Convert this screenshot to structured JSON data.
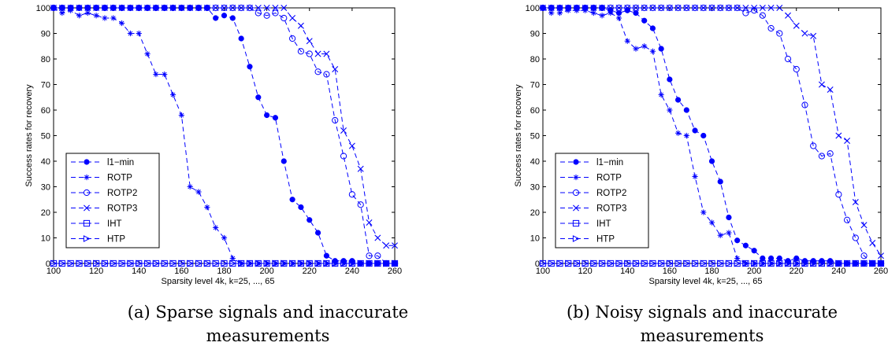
{
  "chart_data": [
    {
      "type": "line",
      "xlabel": "Sparsity level 4k, k=25, ..., 65",
      "ylabel": "Success rates for recovery",
      "xlim": [
        100,
        260
      ],
      "ylim": [
        0,
        100
      ],
      "x_ticks": [
        "100",
        "120",
        "140",
        "160",
        "180",
        "200",
        "220",
        "240",
        "260"
      ],
      "y_ticks": [
        "0",
        "10",
        "20",
        "30",
        "40",
        "50",
        "60",
        "70",
        "80",
        "90",
        "100"
      ],
      "grid": false,
      "legend_position": "lower-left",
      "caption_lines": [
        "(a) Sparse signals and inaccurate",
        "measurements"
      ],
      "series": [
        {
          "name": "l1−min",
          "marker": "dot",
          "color": "#0000ff",
          "x": [
            100,
            104,
            108,
            112,
            116,
            120,
            124,
            128,
            132,
            136,
            140,
            144,
            148,
            152,
            156,
            160,
            164,
            168,
            172,
            176,
            180,
            184,
            188,
            192,
            196,
            200,
            204,
            208,
            212,
            216,
            220,
            224,
            228,
            232,
            236,
            240,
            244,
            248,
            252,
            256,
            260
          ],
          "y": [
            100,
            100,
            100,
            100,
            100,
            100,
            100,
            100,
            100,
            100,
            100,
            100,
            100,
            100,
            100,
            100,
            100,
            100,
            100,
            96,
            97,
            96,
            88,
            77,
            65,
            58,
            57,
            40,
            25,
            22,
            17,
            12,
            3,
            1,
            1,
            1,
            0,
            0,
            0,
            0,
            0
          ]
        },
        {
          "name": "ROTP",
          "marker": "asterisk",
          "color": "#0000ff",
          "x": [
            100,
            104,
            108,
            112,
            116,
            120,
            124,
            128,
            132,
            136,
            140,
            144,
            148,
            152,
            156,
            160,
            164,
            168,
            172,
            176,
            180,
            184,
            188,
            192,
            196,
            200,
            204,
            208,
            212,
            216,
            220,
            224,
            228,
            232,
            236,
            240,
            244,
            248,
            252,
            256,
            260
          ],
          "y": [
            100,
            98,
            99,
            97,
            98,
            97,
            96,
            96,
            94,
            90,
            90,
            82,
            74,
            74,
            66,
            58,
            30,
            28,
            22,
            14,
            10,
            2,
            0,
            0,
            0,
            0,
            0,
            0,
            0,
            0,
            0,
            0,
            0,
            0,
            0,
            0,
            0,
            0,
            0,
            0,
            0
          ]
        },
        {
          "name": "ROTP2",
          "marker": "circle",
          "color": "#0000ff",
          "x": [
            100,
            104,
            108,
            112,
            116,
            120,
            124,
            128,
            132,
            136,
            140,
            144,
            148,
            152,
            156,
            160,
            164,
            168,
            172,
            176,
            180,
            184,
            188,
            192,
            196,
            200,
            204,
            208,
            212,
            216,
            220,
            224,
            228,
            232,
            236,
            240,
            244,
            248,
            252,
            256,
            260
          ],
          "y": [
            100,
            100,
            100,
            100,
            100,
            100,
            100,
            100,
            100,
            100,
            100,
            100,
            100,
            100,
            100,
            100,
            100,
            100,
            100,
            100,
            100,
            100,
            100,
            100,
            98,
            97,
            98,
            96,
            88,
            83,
            82,
            75,
            74,
            56,
            42,
            27,
            23,
            3,
            3,
            0,
            0
          ]
        },
        {
          "name": "ROTP3",
          "marker": "cross",
          "color": "#0000ff",
          "x": [
            100,
            104,
            108,
            112,
            116,
            120,
            124,
            128,
            132,
            136,
            140,
            144,
            148,
            152,
            156,
            160,
            164,
            168,
            172,
            176,
            180,
            184,
            188,
            192,
            196,
            200,
            204,
            208,
            212,
            216,
            220,
            224,
            228,
            232,
            236,
            240,
            244,
            248,
            252,
            256,
            260
          ],
          "y": [
            100,
            100,
            100,
            100,
            100,
            100,
            100,
            100,
            100,
            100,
            100,
            100,
            100,
            100,
            100,
            100,
            100,
            100,
            100,
            100,
            100,
            100,
            100,
            100,
            100,
            100,
            100,
            100,
            96,
            93,
            87,
            82,
            82,
            76,
            52,
            46,
            37,
            16,
            10,
            7,
            7
          ]
        },
        {
          "name": "IHT",
          "marker": "square",
          "color": "#0000ff",
          "x": [
            100,
            104,
            108,
            112,
            116,
            120,
            124,
            128,
            132,
            136,
            140,
            144,
            148,
            152,
            156,
            160,
            164,
            168,
            172,
            176,
            180,
            184,
            188,
            192,
            196,
            200,
            204,
            208,
            212,
            216,
            220,
            224,
            228,
            232,
            236,
            240,
            244,
            248,
            252,
            256,
            260
          ],
          "y": [
            0,
            0,
            0,
            0,
            0,
            0,
            0,
            0,
            0,
            0,
            0,
            0,
            0,
            0,
            0,
            0,
            0,
            0,
            0,
            0,
            0,
            0,
            0,
            0,
            0,
            0,
            0,
            0,
            0,
            0,
            0,
            0,
            0,
            0,
            0,
            0,
            0,
            0,
            0,
            0,
            0
          ]
        },
        {
          "name": "HTP",
          "marker": "triangle-right",
          "color": "#0000ff",
          "x": [
            100,
            104,
            108,
            112,
            116,
            120,
            124,
            128,
            132,
            136,
            140,
            144,
            148,
            152,
            156,
            160,
            164,
            168,
            172,
            176,
            180,
            184,
            188,
            192,
            196,
            200,
            204,
            208,
            212,
            216,
            220,
            224,
            228,
            232,
            236,
            240,
            244,
            248,
            252,
            256,
            260
          ],
          "y": [
            0,
            0,
            0,
            0,
            0,
            0,
            0,
            0,
            0,
            0,
            0,
            0,
            0,
            0,
            0,
            0,
            0,
            0,
            0,
            0,
            0,
            0,
            0,
            0,
            0,
            0,
            0,
            0,
            0,
            0,
            0,
            0,
            0,
            0,
            0,
            0,
            0,
            0,
            0,
            0,
            0
          ]
        }
      ]
    },
    {
      "type": "line",
      "xlabel": "Sparsity level 4k, k=25, ..., 65",
      "ylabel": "Success rates for recovery",
      "xlim": [
        100,
        260
      ],
      "ylim": [
        0,
        100
      ],
      "x_ticks": [
        "100",
        "120",
        "140",
        "160",
        "180",
        "200",
        "220",
        "240",
        "260"
      ],
      "y_ticks": [
        "0",
        "10",
        "20",
        "30",
        "40",
        "50",
        "60",
        "70",
        "80",
        "90",
        "100"
      ],
      "grid": false,
      "legend_position": "lower-left",
      "caption_lines": [
        "(b) Noisy signals and inaccurate",
        "measurements"
      ],
      "series": [
        {
          "name": "l1−min",
          "marker": "dot",
          "color": "#0000ff",
          "x": [
            100,
            104,
            108,
            112,
            116,
            120,
            124,
            128,
            132,
            136,
            140,
            144,
            148,
            152,
            156,
            160,
            164,
            168,
            172,
            176,
            180,
            184,
            188,
            192,
            196,
            200,
            204,
            208,
            212,
            216,
            220,
            224,
            228,
            232,
            236,
            240,
            244,
            248,
            252,
            256,
            260
          ],
          "y": [
            100,
            100,
            100,
            100,
            100,
            100,
            100,
            100,
            99,
            98,
            99,
            98,
            95,
            92,
            84,
            72,
            64,
            60,
            52,
            50,
            40,
            32,
            18,
            9,
            7,
            5,
            2,
            2,
            2,
            1,
            2,
            1,
            1,
            1,
            1,
            0,
            0,
            0,
            0,
            0,
            0
          ]
        },
        {
          "name": "ROTP",
          "marker": "asterisk",
          "color": "#0000ff",
          "x": [
            100,
            104,
            108,
            112,
            116,
            120,
            124,
            128,
            132,
            136,
            140,
            144,
            148,
            152,
            156,
            160,
            164,
            168,
            172,
            176,
            180,
            184,
            188,
            192,
            196,
            200,
            204,
            208,
            212,
            216,
            220,
            224,
            228,
            232,
            236,
            240,
            244,
            248,
            252,
            256,
            260
          ],
          "y": [
            100,
            98,
            98,
            99,
            99,
            99,
            98,
            97,
            98,
            96,
            87,
            84,
            85,
            83,
            66,
            60,
            51,
            50,
            34,
            20,
            16,
            11,
            12,
            2,
            0,
            0,
            0,
            0,
            0,
            0,
            0,
            0,
            0,
            0,
            0,
            0,
            0,
            0,
            0,
            0,
            0
          ]
        },
        {
          "name": "ROTP2",
          "marker": "circle",
          "color": "#0000ff",
          "x": [
            100,
            104,
            108,
            112,
            116,
            120,
            124,
            128,
            132,
            136,
            140,
            144,
            148,
            152,
            156,
            160,
            164,
            168,
            172,
            176,
            180,
            184,
            188,
            192,
            196,
            200,
            204,
            208,
            212,
            216,
            220,
            224,
            228,
            232,
            236,
            240,
            244,
            248,
            252,
            256,
            260
          ],
          "y": [
            100,
            100,
            100,
            100,
            100,
            100,
            100,
            100,
            100,
            100,
            100,
            100,
            100,
            100,
            100,
            100,
            100,
            100,
            100,
            100,
            100,
            100,
            100,
            100,
            98,
            99,
            97,
            92,
            90,
            80,
            76,
            62,
            46,
            42,
            43,
            27,
            17,
            10,
            3,
            0,
            0
          ]
        },
        {
          "name": "ROTP3",
          "marker": "cross",
          "color": "#0000ff",
          "x": [
            100,
            104,
            108,
            112,
            116,
            120,
            124,
            128,
            132,
            136,
            140,
            144,
            148,
            152,
            156,
            160,
            164,
            168,
            172,
            176,
            180,
            184,
            188,
            192,
            196,
            200,
            204,
            208,
            212,
            216,
            220,
            224,
            228,
            232,
            236,
            240,
            244,
            248,
            252,
            256,
            260
          ],
          "y": [
            100,
            100,
            100,
            100,
            100,
            100,
            100,
            100,
            100,
            100,
            100,
            100,
            100,
            100,
            100,
            100,
            100,
            100,
            100,
            100,
            100,
            100,
            100,
            100,
            100,
            100,
            100,
            100,
            100,
            97,
            93,
            90,
            89,
            70,
            68,
            50,
            48,
            24,
            15,
            8,
            3
          ]
        },
        {
          "name": "IHT",
          "marker": "square",
          "color": "#0000ff",
          "x": [
            100,
            104,
            108,
            112,
            116,
            120,
            124,
            128,
            132,
            136,
            140,
            144,
            148,
            152,
            156,
            160,
            164,
            168,
            172,
            176,
            180,
            184,
            188,
            192,
            196,
            200,
            204,
            208,
            212,
            216,
            220,
            224,
            228,
            232,
            236,
            240,
            244,
            248,
            252,
            256,
            260
          ],
          "y": [
            0,
            0,
            0,
            0,
            0,
            0,
            0,
            0,
            0,
            0,
            0,
            0,
            0,
            0,
            0,
            0,
            0,
            0,
            0,
            0,
            0,
            0,
            0,
            0,
            0,
            0,
            0,
            0,
            0,
            0,
            0,
            0,
            0,
            0,
            0,
            0,
            0,
            0,
            0,
            0,
            0
          ]
        },
        {
          "name": "HTP",
          "marker": "triangle-right",
          "color": "#0000ff",
          "x": [
            100,
            104,
            108,
            112,
            116,
            120,
            124,
            128,
            132,
            136,
            140,
            144,
            148,
            152,
            156,
            160,
            164,
            168,
            172,
            176,
            180,
            184,
            188,
            192,
            196,
            200,
            204,
            208,
            212,
            216,
            220,
            224,
            228,
            232,
            236,
            240,
            244,
            248,
            252,
            256,
            260
          ],
          "y": [
            0,
            0,
            0,
            0,
            0,
            0,
            0,
            0,
            0,
            0,
            0,
            0,
            0,
            0,
            0,
            0,
            0,
            0,
            0,
            0,
            0,
            0,
            0,
            0,
            0,
            0,
            0,
            0,
            0,
            0,
            0,
            0,
            0,
            0,
            0,
            0,
            0,
            0,
            0,
            0,
            0
          ]
        }
      ]
    }
  ]
}
